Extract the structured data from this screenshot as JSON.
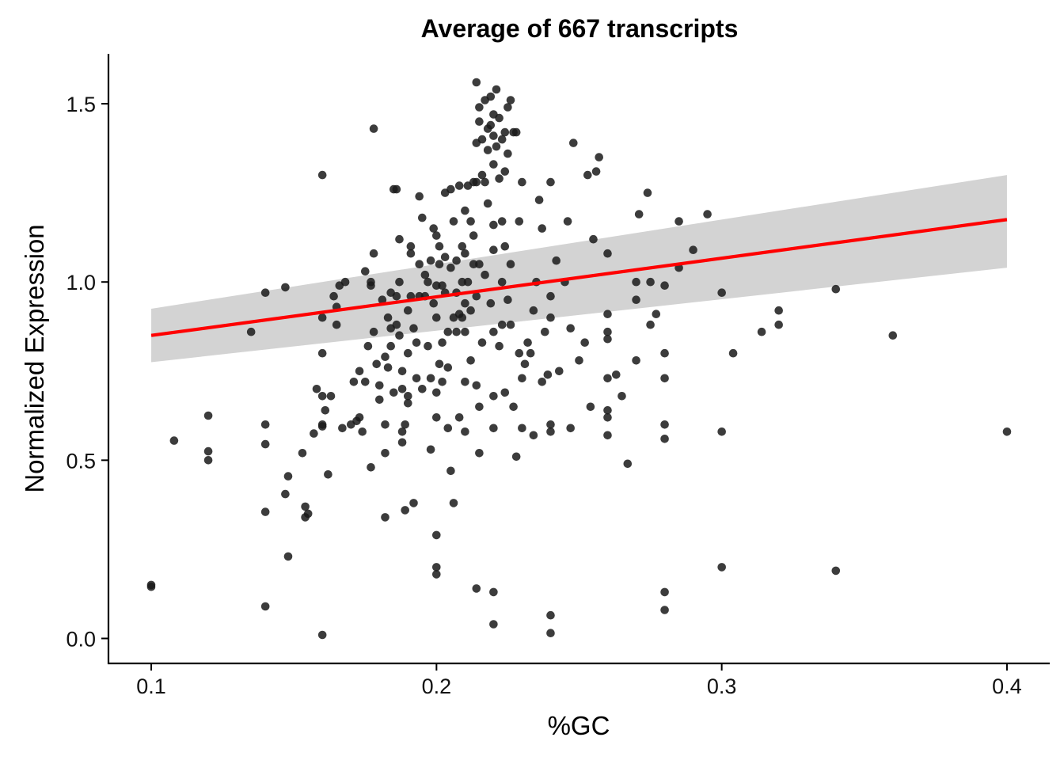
{
  "chart_data": {
    "type": "scatter",
    "title": "Average of 667 transcripts",
    "xlabel": "%GC",
    "ylabel": "Normalized Expression",
    "xlim": [
      0.085,
      0.415
    ],
    "ylim": [
      -0.07,
      1.64
    ],
    "x_ticks": [
      0.1,
      0.2,
      0.3,
      0.4
    ],
    "x_tick_labels": [
      "0.1",
      "0.2",
      "0.3",
      "0.4"
    ],
    "y_ticks": [
      0.0,
      0.5,
      1.0,
      1.5
    ],
    "y_tick_labels": [
      "0.0",
      "0.5",
      "1.0",
      "1.5"
    ],
    "grid": false,
    "legend": "none",
    "colors": {
      "points": "#1a1a1a",
      "fit_line": "#ff0000",
      "confidence_band": "#d3d3d3"
    },
    "fit": {
      "method": "linear",
      "x": [
        0.1,
        0.4
      ],
      "y": [
        0.85,
        1.175
      ],
      "ci_lower": [
        0.775,
        1.04
      ],
      "ci_upper": [
        0.925,
        1.3
      ]
    },
    "points": [
      [
        0.1,
        0.15
      ],
      [
        0.1,
        0.145
      ],
      [
        0.108,
        0.555
      ],
      [
        0.12,
        0.625
      ],
      [
        0.12,
        0.525
      ],
      [
        0.12,
        0.5
      ],
      [
        0.135,
        0.86
      ],
      [
        0.14,
        0.97
      ],
      [
        0.14,
        0.6
      ],
      [
        0.14,
        0.545
      ],
      [
        0.14,
        0.355
      ],
      [
        0.14,
        0.09
      ],
      [
        0.147,
        0.985
      ],
      [
        0.147,
        0.405
      ],
      [
        0.148,
        0.455
      ],
      [
        0.148,
        0.23
      ],
      [
        0.153,
        0.52
      ],
      [
        0.154,
        0.37
      ],
      [
        0.154,
        0.34
      ],
      [
        0.155,
        0.35
      ],
      [
        0.157,
        0.575
      ],
      [
        0.158,
        0.7
      ],
      [
        0.16,
        1.3
      ],
      [
        0.16,
        0.9
      ],
      [
        0.16,
        0.8
      ],
      [
        0.16,
        0.68
      ],
      [
        0.16,
        0.6
      ],
      [
        0.16,
        0.595
      ],
      [
        0.16,
        0.01
      ],
      [
        0.161,
        0.64
      ],
      [
        0.162,
        0.46
      ],
      [
        0.163,
        0.68
      ],
      [
        0.164,
        0.96
      ],
      [
        0.165,
        0.88
      ],
      [
        0.165,
        0.93
      ],
      [
        0.166,
        0.99
      ],
      [
        0.167,
        0.59
      ],
      [
        0.168,
        1.0
      ],
      [
        0.17,
        0.6
      ],
      [
        0.171,
        0.72
      ],
      [
        0.172,
        0.61
      ],
      [
        0.173,
        0.75
      ],
      [
        0.173,
        0.62
      ],
      [
        0.174,
        0.58
      ],
      [
        0.175,
        1.03
      ],
      [
        0.175,
        0.72
      ],
      [
        0.176,
        0.82
      ],
      [
        0.177,
        0.48
      ],
      [
        0.177,
        0.99
      ],
      [
        0.177,
        1.0
      ],
      [
        0.178,
        1.43
      ],
      [
        0.178,
        1.08
      ],
      [
        0.178,
        0.86
      ],
      [
        0.179,
        0.77
      ],
      [
        0.18,
        0.71
      ],
      [
        0.18,
        0.67
      ],
      [
        0.181,
        0.95
      ],
      [
        0.182,
        0.79
      ],
      [
        0.182,
        0.6
      ],
      [
        0.182,
        0.52
      ],
      [
        0.182,
        0.34
      ],
      [
        0.183,
        0.76
      ],
      [
        0.183,
        0.9
      ],
      [
        0.184,
        0.82
      ],
      [
        0.184,
        0.87
      ],
      [
        0.184,
        0.97
      ],
      [
        0.185,
        1.26
      ],
      [
        0.185,
        0.69
      ],
      [
        0.186,
        1.26
      ],
      [
        0.186,
        0.96
      ],
      [
        0.186,
        0.88
      ],
      [
        0.187,
        0.85
      ],
      [
        0.187,
        1.0
      ],
      [
        0.187,
        1.12
      ],
      [
        0.188,
        0.7
      ],
      [
        0.188,
        0.75
      ],
      [
        0.188,
        0.58
      ],
      [
        0.188,
        0.55
      ],
      [
        0.189,
        0.6
      ],
      [
        0.189,
        0.36
      ],
      [
        0.19,
        0.92
      ],
      [
        0.19,
        0.8
      ],
      [
        0.19,
        0.68
      ],
      [
        0.19,
        0.66
      ],
      [
        0.191,
        1.08
      ],
      [
        0.191,
        0.96
      ],
      [
        0.191,
        1.1
      ],
      [
        0.192,
        0.87
      ],
      [
        0.192,
        0.38
      ],
      [
        0.193,
        0.73
      ],
      [
        0.193,
        0.83
      ],
      [
        0.194,
        1.24
      ],
      [
        0.194,
        0.96
      ],
      [
        0.194,
        1.05
      ],
      [
        0.195,
        1.18
      ],
      [
        0.195,
        0.7
      ],
      [
        0.196,
        0.96
      ],
      [
        0.196,
        1.02
      ],
      [
        0.197,
        0.82
      ],
      [
        0.197,
        1.0
      ],
      [
        0.198,
        1.06
      ],
      [
        0.198,
        0.73
      ],
      [
        0.198,
        0.53
      ],
      [
        0.199,
        0.94
      ],
      [
        0.199,
        1.15
      ],
      [
        0.2,
        1.13
      ],
      [
        0.2,
        0.99
      ],
      [
        0.2,
        0.9
      ],
      [
        0.2,
        0.69
      ],
      [
        0.2,
        0.62
      ],
      [
        0.2,
        0.29
      ],
      [
        0.2,
        0.2
      ],
      [
        0.2,
        0.18
      ],
      [
        0.201,
        1.1
      ],
      [
        0.201,
        1.05
      ],
      [
        0.201,
        0.77
      ],
      [
        0.202,
        0.99
      ],
      [
        0.202,
        0.72
      ],
      [
        0.202,
        0.83
      ],
      [
        0.203,
        1.25
      ],
      [
        0.203,
        1.07
      ],
      [
        0.203,
        0.97
      ],
      [
        0.204,
        0.59
      ],
      [
        0.204,
        0.86
      ],
      [
        0.204,
        0.76
      ],
      [
        0.205,
        1.26
      ],
      [
        0.205,
        1.04
      ],
      [
        0.205,
        0.47
      ],
      [
        0.206,
        1.17
      ],
      [
        0.206,
        0.9
      ],
      [
        0.206,
        0.38
      ],
      [
        0.207,
        1.06
      ],
      [
        0.207,
        0.97
      ],
      [
        0.207,
        0.86
      ],
      [
        0.208,
        1.27
      ],
      [
        0.208,
        0.91
      ],
      [
        0.208,
        0.62
      ],
      [
        0.209,
        1.1
      ],
      [
        0.209,
        1.0
      ],
      [
        0.209,
        0.9
      ],
      [
        0.21,
        1.2
      ],
      [
        0.21,
        1.08
      ],
      [
        0.21,
        0.94
      ],
      [
        0.21,
        0.86
      ],
      [
        0.21,
        0.72
      ],
      [
        0.21,
        0.58
      ],
      [
        0.211,
        1.27
      ],
      [
        0.211,
        1.0
      ],
      [
        0.212,
        1.17
      ],
      [
        0.212,
        0.92
      ],
      [
        0.212,
        0.78
      ],
      [
        0.213,
        1.28
      ],
      [
        0.213,
        1.13
      ],
      [
        0.213,
        1.05
      ],
      [
        0.214,
        1.39
      ],
      [
        0.214,
        1.56
      ],
      [
        0.214,
        1.28
      ],
      [
        0.214,
        0.96
      ],
      [
        0.214,
        0.71
      ],
      [
        0.214,
        0.14
      ],
      [
        0.215,
        1.49
      ],
      [
        0.215,
        1.45
      ],
      [
        0.215,
        1.05
      ],
      [
        0.215,
        0.65
      ],
      [
        0.215,
        0.52
      ],
      [
        0.216,
        1.3
      ],
      [
        0.216,
        1.4
      ],
      [
        0.216,
        0.83
      ],
      [
        0.217,
        1.51
      ],
      [
        0.217,
        1.28
      ],
      [
        0.217,
        1.02
      ],
      [
        0.218,
        1.43
      ],
      [
        0.218,
        1.37
      ],
      [
        0.218,
        1.22
      ],
      [
        0.219,
        1.52
      ],
      [
        0.219,
        1.44
      ],
      [
        0.219,
        0.94
      ],
      [
        0.22,
        1.47
      ],
      [
        0.22,
        1.41
      ],
      [
        0.22,
        1.33
      ],
      [
        0.22,
        1.16
      ],
      [
        0.22,
        1.09
      ],
      [
        0.22,
        0.86
      ],
      [
        0.22,
        0.68
      ],
      [
        0.22,
        0.59
      ],
      [
        0.22,
        0.13
      ],
      [
        0.22,
        0.04
      ],
      [
        0.221,
        1.54
      ],
      [
        0.221,
        1.38
      ],
      [
        0.222,
        1.46
      ],
      [
        0.222,
        1.29
      ],
      [
        0.222,
        0.82
      ],
      [
        0.223,
        1.4
      ],
      [
        0.223,
        1.17
      ],
      [
        0.223,
        1.0
      ],
      [
        0.223,
        0.88
      ],
      [
        0.224,
        1.42
      ],
      [
        0.224,
        1.31
      ],
      [
        0.224,
        1.1
      ],
      [
        0.224,
        0.69
      ],
      [
        0.225,
        1.49
      ],
      [
        0.225,
        1.36
      ],
      [
        0.225,
        0.95
      ],
      [
        0.226,
        1.51
      ],
      [
        0.226,
        1.05
      ],
      [
        0.226,
        0.88
      ],
      [
        0.227,
        1.42
      ],
      [
        0.227,
        0.65
      ],
      [
        0.228,
        1.42
      ],
      [
        0.228,
        0.51
      ],
      [
        0.229,
        1.17
      ],
      [
        0.229,
        0.8
      ],
      [
        0.23,
        1.28
      ],
      [
        0.23,
        0.59
      ],
      [
        0.23,
        0.73
      ],
      [
        0.231,
        0.77
      ],
      [
        0.232,
        0.83
      ],
      [
        0.233,
        0.8
      ],
      [
        0.234,
        0.57
      ],
      [
        0.234,
        0.92
      ],
      [
        0.235,
        1.0
      ],
      [
        0.236,
        1.23
      ],
      [
        0.237,
        1.15
      ],
      [
        0.237,
        0.72
      ],
      [
        0.238,
        0.86
      ],
      [
        0.239,
        0.74
      ],
      [
        0.24,
        1.28
      ],
      [
        0.24,
        0.96
      ],
      [
        0.24,
        0.9
      ],
      [
        0.24,
        0.6
      ],
      [
        0.24,
        0.58
      ],
      [
        0.24,
        0.065
      ],
      [
        0.24,
        0.015
      ],
      [
        0.242,
        1.06
      ],
      [
        0.243,
        0.75
      ],
      [
        0.245,
        1.0
      ],
      [
        0.246,
        1.17
      ],
      [
        0.247,
        0.59
      ],
      [
        0.247,
        0.87
      ],
      [
        0.248,
        1.39
      ],
      [
        0.25,
        0.78
      ],
      [
        0.252,
        0.83
      ],
      [
        0.253,
        1.3
      ],
      [
        0.254,
        0.65
      ],
      [
        0.255,
        1.12
      ],
      [
        0.256,
        1.31
      ],
      [
        0.257,
        1.35
      ],
      [
        0.26,
        1.08
      ],
      [
        0.26,
        0.91
      ],
      [
        0.26,
        0.86
      ],
      [
        0.26,
        0.84
      ],
      [
        0.26,
        0.64
      ],
      [
        0.26,
        0.62
      ],
      [
        0.26,
        0.57
      ],
      [
        0.26,
        0.73
      ],
      [
        0.263,
        0.74
      ],
      [
        0.265,
        0.68
      ],
      [
        0.267,
        0.49
      ],
      [
        0.27,
        1.0
      ],
      [
        0.27,
        0.78
      ],
      [
        0.27,
        0.95
      ],
      [
        0.271,
        1.19
      ],
      [
        0.274,
        1.25
      ],
      [
        0.275,
        0.88
      ],
      [
        0.275,
        1.0
      ],
      [
        0.277,
        0.91
      ],
      [
        0.28,
        0.99
      ],
      [
        0.28,
        0.8
      ],
      [
        0.28,
        0.73
      ],
      [
        0.28,
        0.6
      ],
      [
        0.28,
        0.56
      ],
      [
        0.28,
        0.13
      ],
      [
        0.28,
        0.08
      ],
      [
        0.285,
        1.17
      ],
      [
        0.285,
        1.04
      ],
      [
        0.29,
        1.09
      ],
      [
        0.295,
        1.19
      ],
      [
        0.3,
        0.97
      ],
      [
        0.3,
        0.58
      ],
      [
        0.3,
        0.2
      ],
      [
        0.304,
        0.8
      ],
      [
        0.314,
        0.86
      ],
      [
        0.32,
        0.92
      ],
      [
        0.32,
        0.88
      ],
      [
        0.34,
        0.98
      ],
      [
        0.34,
        0.19
      ],
      [
        0.36,
        0.85
      ],
      [
        0.4,
        0.58
      ]
    ]
  }
}
